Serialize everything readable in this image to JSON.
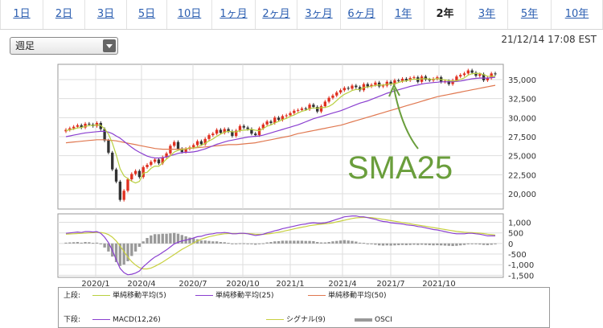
{
  "tabs": [
    {
      "label": "1日",
      "active": false
    },
    {
      "label": "2日",
      "active": false
    },
    {
      "label": "3日",
      "active": false
    },
    {
      "label": "5日",
      "active": false
    },
    {
      "label": "10日",
      "active": false
    },
    {
      "label": "1ヶ月",
      "active": false
    },
    {
      "label": "2ヶ月",
      "active": false
    },
    {
      "label": "3ヶ月",
      "active": false
    },
    {
      "label": "6ヶ月",
      "active": false
    },
    {
      "label": "1年",
      "active": false
    },
    {
      "label": "2年",
      "active": true
    },
    {
      "label": "3年",
      "active": false
    },
    {
      "label": "5年",
      "active": false
    },
    {
      "label": "10年",
      "active": false
    }
  ],
  "period_select": {
    "value": "週足"
  },
  "timestamp": "21/12/14 17:08 EST",
  "annotation": {
    "text": "SMA25",
    "color": "#6a9e3c"
  },
  "legend": {
    "upper_label": "上段:",
    "lower_label": "下段:",
    "upper": [
      {
        "name": "単純移動平均(5)",
        "color": "#b8d040"
      },
      {
        "name": "単純移動平均(25)",
        "color": "#8a3fd0"
      },
      {
        "name": "単純移動平均(50)",
        "color": "#e07850"
      }
    ],
    "lower": [
      {
        "name": "MACD(12,26)",
        "color": "#8a3fd0"
      },
      {
        "name": "シグナル(9)",
        "color": "#c8d040"
      },
      {
        "name": "OSCI",
        "color": "#999999"
      }
    ]
  },
  "chart_data": [
    {
      "type": "candlestick",
      "panel": "price",
      "x_ticks": [
        "2020/1",
        "2020/4",
        "2020/7",
        "2020/10",
        "2021/1",
        "2021/4",
        "2021/7",
        "2021/10"
      ],
      "y_ticks": [
        "35,000",
        "32,500",
        "30,000",
        "27,500",
        "25,000",
        "22,500",
        "20,000"
      ],
      "ylim": [
        18000,
        37000
      ],
      "up_color": "#e03020",
      "down_color": "#333333",
      "close": [
        28400,
        28600,
        28800,
        29000,
        28700,
        29200,
        29100,
        28900,
        29300,
        28500,
        27000,
        25400,
        23200,
        21600,
        19200,
        20400,
        21900,
        22600,
        23000,
        22200,
        23500,
        23800,
        24200,
        24500,
        24000,
        24800,
        25300,
        26300,
        26800,
        25900,
        25500,
        25900,
        26100,
        26400,
        26900,
        26500,
        27200,
        27700,
        27900,
        28400,
        28000,
        28500,
        28200,
        27600,
        28300,
        28900,
        28700,
        28500,
        27900,
        27700,
        28600,
        29100,
        29500,
        29300,
        30000,
        29700,
        30200,
        30300,
        30600,
        30900,
        31000,
        31200,
        31100,
        31700,
        31400,
        30800,
        31500,
        32100,
        32600,
        32900,
        33300,
        33600,
        33900,
        33800,
        34200,
        34000,
        33600,
        34400,
        34100,
        34300,
        34600,
        34100,
        34200,
        34700,
        34400,
        34900,
        34800,
        35100,
        34900,
        35200,
        35300,
        34700,
        35400,
        35000,
        34900,
        35100,
        35300,
        34700,
        34800,
        34400,
        34900,
        35400,
        35600,
        35800,
        36200,
        35900,
        35500,
        35700,
        34900,
        35200,
        35800,
        35700
      ],
      "sma5": [
        28300,
        28400,
        28500,
        28650,
        28700,
        28860,
        28960,
        28980,
        29040,
        28980,
        28540,
        27840,
        26680,
        25140,
        23280,
        22360,
        21980,
        21640,
        21420,
        21620,
        22720,
        22820,
        23340,
        23640,
        23600,
        24060,
        24560,
        24980,
        25480,
        25720,
        25800,
        25880,
        26040,
        26000,
        26160,
        26360,
        26620,
        26940,
        27200,
        27540,
        27840,
        28100,
        28200,
        28140,
        28120,
        28300,
        28340,
        28400,
        28460,
        28340,
        28280,
        28560,
        28880,
        29040,
        29300,
        29520,
        29740,
        29900,
        30160,
        30340,
        30600,
        30840,
        30960,
        31180,
        31280,
        31240,
        31300,
        31340,
        31480,
        31780,
        32240,
        32700,
        33060,
        33300,
        33560,
        33700,
        33700,
        33960,
        34020,
        34120,
        34220,
        34300,
        34260,
        34380,
        34400,
        34460,
        34600,
        34780,
        34820,
        34980,
        35060,
        35040,
        35100,
        35120,
        35060,
        35020,
        35140,
        35000,
        34960,
        34860,
        34820,
        34840,
        35020,
        35220,
        35580,
        35780,
        35800,
        35820,
        35640,
        35440,
        35420,
        35460
      ],
      "sma25": [
        27500,
        27600,
        27700,
        27800,
        27900,
        28000,
        28050,
        28100,
        28150,
        28200,
        28200,
        28100,
        27900,
        27600,
        27300,
        26900,
        26500,
        26100,
        25750,
        25450,
        25200,
        24950,
        24800,
        24700,
        24700,
        24750,
        24850,
        25000,
        25150,
        25300,
        25400,
        25450,
        25450,
        25500,
        25600,
        25750,
        25900,
        26100,
        26300,
        26500,
        26650,
        26800,
        26950,
        27050,
        27150,
        27250,
        27350,
        27450,
        27500,
        27550,
        27600,
        27700,
        27850,
        28000,
        28150,
        28300,
        28450,
        28600,
        28750,
        28900,
        29050,
        29250,
        29450,
        29650,
        29850,
        30000,
        30150,
        30300,
        30450,
        30600,
        30750,
        30900,
        31100,
        31300,
        31500,
        31700,
        31900,
        32050,
        32200,
        32400,
        32600,
        32800,
        33000,
        33200,
        33350,
        33500,
        33650,
        33800,
        33950,
        34100,
        34200,
        34300,
        34400,
        34500,
        34550,
        34600,
        34650,
        34700,
        34700,
        34700,
        34700,
        34750,
        34800,
        34900,
        35000,
        35100,
        35150,
        35200,
        35200,
        35200,
        35250,
        35300
      ],
      "sma50": [
        26700,
        26750,
        26800,
        26850,
        26900,
        26950,
        27000,
        27050,
        27100,
        27100,
        27100,
        27050,
        27000,
        26950,
        26850,
        26750,
        26650,
        26550,
        26450,
        26350,
        26250,
        26150,
        26050,
        25950,
        25900,
        25850,
        25850,
        25850,
        25850,
        25850,
        25900,
        25900,
        25950,
        26000,
        26050,
        26100,
        26150,
        26200,
        26250,
        26300,
        26350,
        26400,
        26450,
        26450,
        26450,
        26500,
        26550,
        26600,
        26650,
        26700,
        26800,
        26900,
        27000,
        27100,
        27200,
        27300,
        27400,
        27500,
        27600,
        27750,
        27900,
        28000,
        28100,
        28200,
        28300,
        28400,
        28500,
        28600,
        28700,
        28800,
        28900,
        29000,
        29150,
        29300,
        29450,
        29600,
        29750,
        29900,
        30050,
        30200,
        30350,
        30500,
        30650,
        30800,
        30950,
        31100,
        31250,
        31400,
        31550,
        31700,
        31850,
        32000,
        32150,
        32300,
        32450,
        32600,
        32750,
        32850,
        32950,
        33050,
        33150,
        33250,
        33350,
        33450,
        33550,
        33650,
        33750,
        33850,
        33950,
        34050,
        34150,
        34250
      ]
    },
    {
      "type": "line+bar",
      "panel": "macd",
      "x_ticks": [
        "2020/1",
        "2020/4",
        "2020/7",
        "2020/10",
        "2021/1",
        "2021/4",
        "2021/7",
        "2021/10"
      ],
      "y_ticks": [
        "1,000",
        "500",
        "0",
        "-500",
        "-1,000",
        "-1,500"
      ],
      "ylim": [
        -1600,
        1400
      ],
      "macd": [
        480,
        500,
        520,
        540,
        520,
        560,
        560,
        540,
        560,
        480,
        300,
        40,
        -320,
        -760,
        -1180,
        -1380,
        -1480,
        -1450,
        -1400,
        -1300,
        -1100,
        -940,
        -780,
        -640,
        -540,
        -420,
        -300,
        -160,
        -20,
        60,
        120,
        160,
        200,
        260,
        320,
        340,
        400,
        440,
        460,
        500,
        500,
        520,
        500,
        460,
        460,
        480,
        480,
        460,
        420,
        380,
        400,
        440,
        500,
        540,
        600,
        640,
        700,
        740,
        780,
        820,
        860,
        900,
        920,
        960,
        980,
        960,
        960,
        980,
        1020,
        1080,
        1140,
        1200,
        1260,
        1280,
        1300,
        1300,
        1260,
        1260,
        1220,
        1180,
        1140,
        1080,
        1040,
        1020,
        980,
        960,
        940,
        920,
        880,
        860,
        840,
        800,
        780,
        740,
        700,
        660,
        640,
        600,
        560,
        520,
        480,
        460,
        460,
        460,
        480,
        480,
        460,
        440,
        400,
        360,
        360,
        360
      ],
      "signal": [
        440,
        450,
        460,
        470,
        480,
        490,
        500,
        510,
        520,
        520,
        490,
        420,
        300,
        120,
        -120,
        -380,
        -640,
        -860,
        -1020,
        -1140,
        -1200,
        -1200,
        -1160,
        -1080,
        -980,
        -880,
        -760,
        -640,
        -520,
        -400,
        -280,
        -180,
        -80,
        20,
        120,
        200,
        260,
        320,
        360,
        400,
        430,
        460,
        470,
        470,
        470,
        470,
        470,
        470,
        460,
        440,
        430,
        430,
        450,
        470,
        500,
        530,
        570,
        610,
        650,
        690,
        730,
        770,
        800,
        840,
        870,
        890,
        910,
        930,
        950,
        980,
        1020,
        1060,
        1100,
        1140,
        1180,
        1210,
        1220,
        1230,
        1230,
        1220,
        1200,
        1170,
        1140,
        1110,
        1080,
        1050,
        1020,
        990,
        960,
        930,
        900,
        870,
        840,
        810,
        780,
        750,
        720,
        690,
        660,
        630,
        600,
        570,
        550,
        530,
        520,
        510,
        500,
        490,
        470,
        440,
        420,
        400
      ],
      "osci": [
        40,
        50,
        60,
        70,
        40,
        70,
        60,
        30,
        40,
        -40,
        -190,
        -380,
        -620,
        -880,
        -1060,
        -1000,
        -840,
        -590,
        -380,
        -160,
        100,
        260,
        380,
        440,
        440,
        460,
        460,
        480,
        500,
        460,
        400,
        340,
        280,
        240,
        200,
        140,
        140,
        120,
        100,
        100,
        70,
        60,
        30,
        -10,
        -10,
        10,
        10,
        -10,
        -40,
        -60,
        -30,
        10,
        50,
        70,
        100,
        110,
        130,
        130,
        130,
        130,
        130,
        130,
        120,
        120,
        110,
        70,
        50,
        50,
        70,
        100,
        120,
        140,
        160,
        140,
        120,
        90,
        40,
        30,
        -10,
        -40,
        -60,
        -90,
        -100,
        -90,
        -100,
        -90,
        -80,
        -70,
        -80,
        -70,
        -60,
        -70,
        -60,
        -70,
        -80,
        -90,
        -80,
        -90,
        -100,
        -110,
        -120,
        -110,
        -90,
        -70,
        -40,
        -30,
        -40,
        -50,
        -70,
        -80,
        -60,
        -40
      ]
    }
  ]
}
